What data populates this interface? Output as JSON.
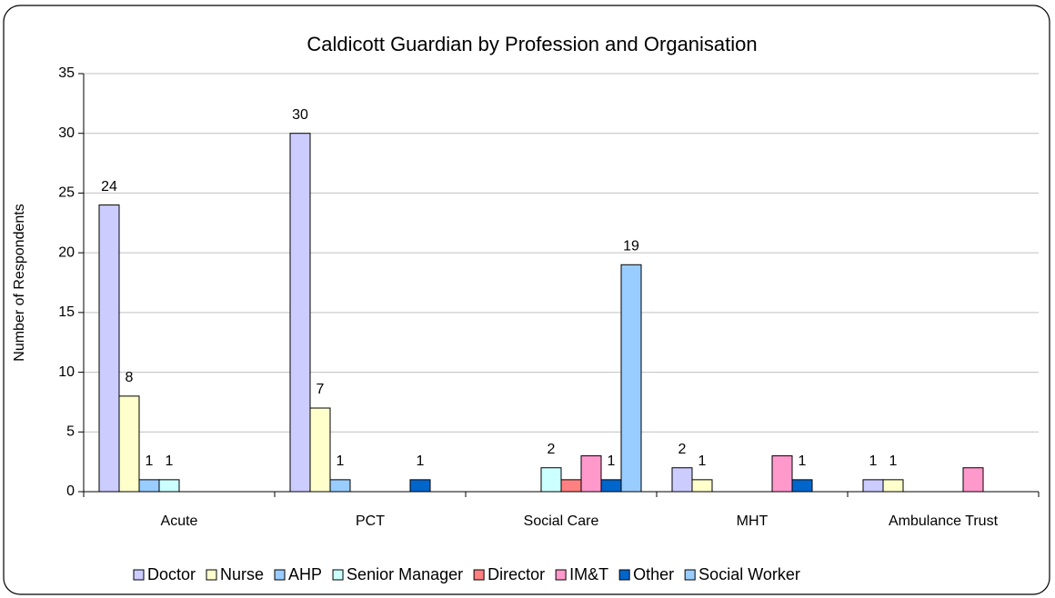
{
  "chart_data": {
    "type": "bar",
    "title": "Caldicott Guardian by Profession and Organisation",
    "y_label": "Number of Respondents",
    "categories": [
      "Acute",
      "PCT",
      "Social Care",
      "MHT",
      "Ambulance Trust"
    ],
    "series": [
      {
        "name": "Doctor",
        "color": "#ccccff",
        "data_labels": true,
        "values": [
          24,
          30,
          null,
          2,
          1
        ]
      },
      {
        "name": "Nurse",
        "color": "#ffffcc",
        "data_labels": true,
        "values": [
          8,
          7,
          null,
          1,
          1
        ]
      },
      {
        "name": "AHP",
        "color": "#99ccff",
        "data_labels": true,
        "values": [
          1,
          1,
          null,
          null,
          null
        ]
      },
      {
        "name": "Senior Manager",
        "color": "#ccffff",
        "data_labels": true,
        "values": [
          1,
          null,
          2,
          null,
          null
        ]
      },
      {
        "name": "Director",
        "color": "#ff8080",
        "data_labels": false,
        "values": [
          null,
          null,
          1,
          null,
          null
        ]
      },
      {
        "name": "IM&T",
        "color": "#ff99cc",
        "data_labels": false,
        "values": [
          null,
          null,
          3,
          3,
          2
        ]
      },
      {
        "name": "Other",
        "color": "#0066cc",
        "data_labels": true,
        "values": [
          null,
          1,
          1,
          1,
          null
        ]
      },
      {
        "name": "Social Worker",
        "color": "#99ccff",
        "data_labels": true,
        "values": [
          null,
          null,
          19,
          null,
          null
        ]
      }
    ],
    "ylim": [
      0,
      35
    ],
    "yticks": [
      0,
      5,
      10,
      15,
      20,
      25,
      30,
      35
    ],
    "grid": true,
    "legend": "bottom"
  }
}
